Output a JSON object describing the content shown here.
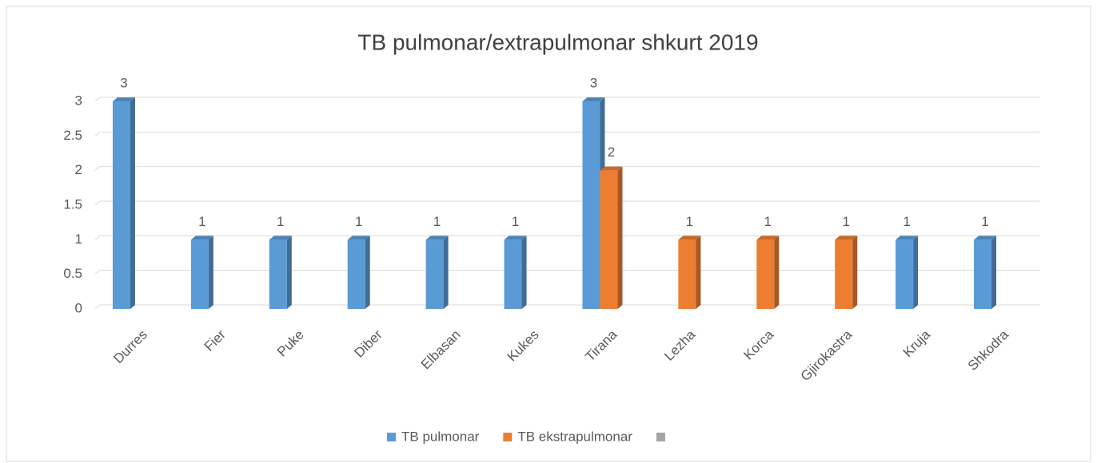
{
  "chart_data": {
    "type": "bar",
    "title": "TB pulmonar/extrapulmonar   shkurt 2019",
    "categories": [
      "Durres",
      "Fier",
      "Puke",
      "Diber",
      "Elbasan",
      "Kukes",
      "Tirana",
      "Lezha",
      "Korca",
      "Gjirokastra",
      "Kruja",
      "Shkodra"
    ],
    "series": [
      {
        "name": "TB pulmonar",
        "color": "#5b9bd5",
        "values": [
          3,
          1,
          1,
          1,
          1,
          1,
          3,
          null,
          null,
          null,
          1,
          1
        ]
      },
      {
        "name": "TB ekstrapulmonar",
        "color": "#ed7d31",
        "values": [
          null,
          null,
          null,
          null,
          null,
          null,
          2,
          1,
          1,
          1,
          null,
          null
        ]
      },
      {
        "color": "#a5a5a5",
        "values": [
          null,
          null,
          null,
          null,
          null,
          null,
          null,
          null,
          null,
          null,
          null,
          null
        ]
      }
    ],
    "ylim": [
      0,
      3
    ],
    "yticks": [
      0,
      0.5,
      1,
      1.5,
      2,
      2.5,
      3
    ],
    "grid": true,
    "legend": "bottom"
  }
}
